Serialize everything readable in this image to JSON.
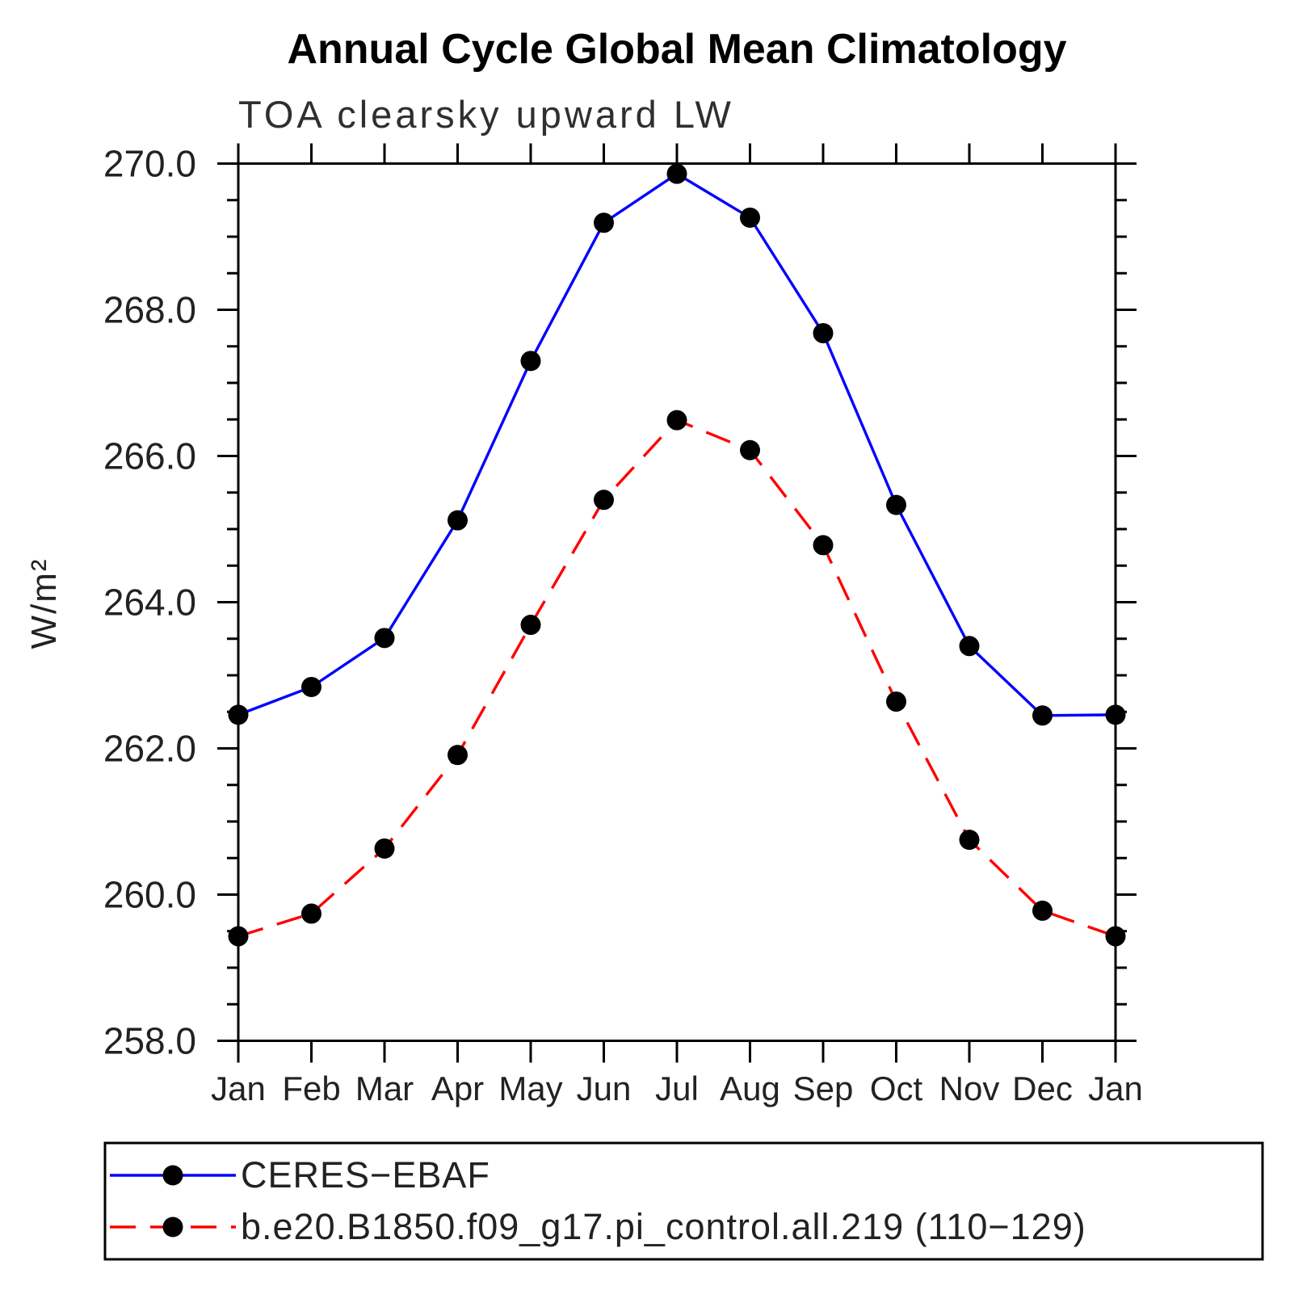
{
  "chart_data": {
    "type": "line",
    "title": "Annual Cycle Global Mean Climatology",
    "subtitle": "TOA clearsky upward LW",
    "ylabel": "W/m²",
    "categories": [
      "Jan",
      "Feb",
      "Mar",
      "Apr",
      "May",
      "Jun",
      "Jul",
      "Aug",
      "Sep",
      "Oct",
      "Nov",
      "Dec",
      "Jan"
    ],
    "ylim": [
      258.0,
      270.0
    ],
    "ytick_major_step": 2.0,
    "ytick_minor_step": 0.5,
    "ytick_labels": [
      "258.0",
      "260.0",
      "262.0",
      "264.0",
      "266.0",
      "268.0",
      "270.0"
    ],
    "grid": false,
    "legend_position": "bottom-left-box",
    "axis_color": "#000000",
    "marker_color": "#000000",
    "series": [
      {
        "name": "CERES−EBAF",
        "color": "#0000ff",
        "line_style": "solid",
        "marker": "circle",
        "values": [
          262.46,
          262.84,
          263.51,
          265.12,
          267.3,
          269.19,
          269.86,
          269.26,
          267.68,
          265.33,
          263.4,
          262.45,
          262.46
        ]
      },
      {
        "name": "b.e20.B1850.f09_g17.pi_control.all.219 (110−129)",
        "color": "#ff0000",
        "line_style": "dashed",
        "marker": "circle",
        "values": [
          259.43,
          259.74,
          260.63,
          261.91,
          263.69,
          265.4,
          266.49,
          266.08,
          264.78,
          262.64,
          260.75,
          259.78,
          259.43
        ]
      }
    ]
  }
}
